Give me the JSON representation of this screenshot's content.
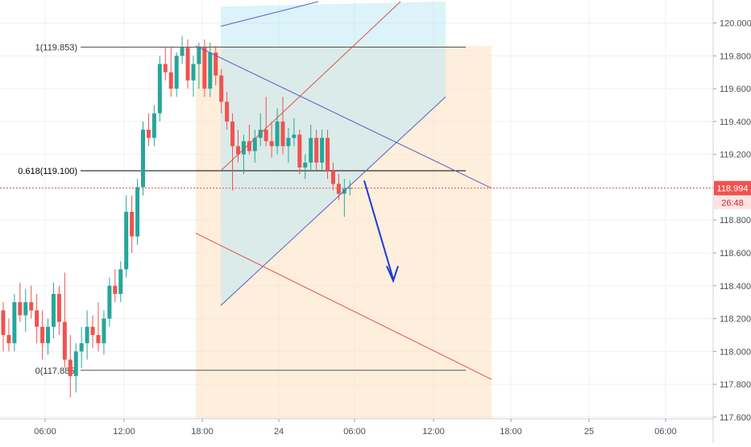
{
  "chart_data": {
    "type": "candlestick",
    "title": "",
    "xlabel": "",
    "ylabel": "",
    "ylim": [
      117.58,
      120.13
    ],
    "y_ticks": [
      "117.600",
      "117.800",
      "118.000",
      "118.200",
      "118.400",
      "118.600",
      "118.800",
      "119.000",
      "119.200",
      "119.400",
      "119.600",
      "119.800",
      "120.000"
    ],
    "x_ticks": [
      "06:00",
      "12:00",
      "18:00",
      "24",
      "06:00",
      "12:00",
      "18:00",
      "25",
      "06:00"
    ],
    "grid": true,
    "last_price": "118.994",
    "countdown": "26:48",
    "candles": [
      [
        118.25,
        118.3,
        118.0,
        118.1
      ],
      [
        118.1,
        118.2,
        118.0,
        118.05
      ],
      [
        118.05,
        118.35,
        118.0,
        118.3
      ],
      [
        118.3,
        118.42,
        118.18,
        118.22
      ],
      [
        118.22,
        118.38,
        118.12,
        118.3
      ],
      [
        118.3,
        118.4,
        118.2,
        118.25
      ],
      [
        118.25,
        118.35,
        118.05,
        118.15
      ],
      [
        118.15,
        118.25,
        117.95,
        118.05
      ],
      [
        118.05,
        118.2,
        117.98,
        118.15
      ],
      [
        118.15,
        118.42,
        118.08,
        118.35
      ],
      [
        118.35,
        118.4,
        118.1,
        118.18
      ],
      [
        118.18,
        118.48,
        117.9,
        117.95
      ],
      [
        117.95,
        118.1,
        117.72,
        117.85
      ],
      [
        117.85,
        118.05,
        117.75,
        118.0
      ],
      [
        118.0,
        118.15,
        117.9,
        118.05
      ],
      [
        118.05,
        118.25,
        117.95,
        118.15
      ],
      [
        118.15,
        118.22,
        118.02,
        118.1
      ],
      [
        118.1,
        118.3,
        118.0,
        118.05
      ],
      [
        118.05,
        118.25,
        117.98,
        118.2
      ],
      [
        118.2,
        118.45,
        118.15,
        118.4
      ],
      [
        118.4,
        118.5,
        118.3,
        118.35
      ],
      [
        118.35,
        118.55,
        118.3,
        118.5
      ],
      [
        118.5,
        118.95,
        118.45,
        118.85
      ],
      [
        118.85,
        118.95,
        118.6,
        118.7
      ],
      [
        118.7,
        119.05,
        118.65,
        119.0
      ],
      [
        119.0,
        119.4,
        118.95,
        119.35
      ],
      [
        119.35,
        119.45,
        119.25,
        119.3
      ],
      [
        119.3,
        119.5,
        119.25,
        119.45
      ],
      [
        119.45,
        119.8,
        119.4,
        119.75
      ],
      [
        119.75,
        119.85,
        119.65,
        119.7
      ],
      [
        119.7,
        119.85,
        119.55,
        119.6
      ],
      [
        119.6,
        119.82,
        119.55,
        119.8
      ],
      [
        119.8,
        119.92,
        119.75,
        119.85
      ],
      [
        119.85,
        119.9,
        119.6,
        119.65
      ],
      [
        119.65,
        119.8,
        119.55,
        119.75
      ],
      [
        119.75,
        119.88,
        119.6,
        119.85
      ],
      [
        119.85,
        119.9,
        119.55,
        119.6
      ],
      [
        119.6,
        119.88,
        119.55,
        119.82
      ],
      [
        119.82,
        119.86,
        119.62,
        119.68
      ],
      [
        119.68,
        119.72,
        119.45,
        119.52
      ],
      [
        119.52,
        119.58,
        119.35,
        119.4
      ],
      [
        119.4,
        119.45,
        118.98,
        119.25
      ],
      [
        119.25,
        119.35,
        119.15,
        119.2
      ],
      [
        119.2,
        119.32,
        119.08,
        119.28
      ],
      [
        119.28,
        119.38,
        119.2,
        119.22
      ],
      [
        119.22,
        119.35,
        119.15,
        119.3
      ],
      [
        119.3,
        119.45,
        119.25,
        119.35
      ],
      [
        119.35,
        119.55,
        119.25,
        119.28
      ],
      [
        119.28,
        119.4,
        119.18,
        119.25
      ],
      [
        119.25,
        119.48,
        119.2,
        119.4
      ],
      [
        119.4,
        119.55,
        119.2,
        119.25
      ],
      [
        119.25,
        119.36,
        119.15,
        119.3
      ],
      [
        119.3,
        119.42,
        119.25,
        119.32
      ],
      [
        119.32,
        119.35,
        119.08,
        119.12
      ],
      [
        119.12,
        119.2,
        119.05,
        119.15
      ],
      [
        119.15,
        119.38,
        119.1,
        119.3
      ],
      [
        119.3,
        119.35,
        119.1,
        119.15
      ],
      [
        119.15,
        119.35,
        119.1,
        119.3
      ],
      [
        119.3,
        119.35,
        119.05,
        119.1
      ],
      [
        119.1,
        119.15,
        118.98,
        119.02
      ],
      [
        119.02,
        119.08,
        118.92,
        118.96
      ],
      [
        118.96,
        119.05,
        118.82,
        118.99
      ],
      [
        118.99,
        119.04,
        118.95,
        118.994
      ]
    ]
  }
}
